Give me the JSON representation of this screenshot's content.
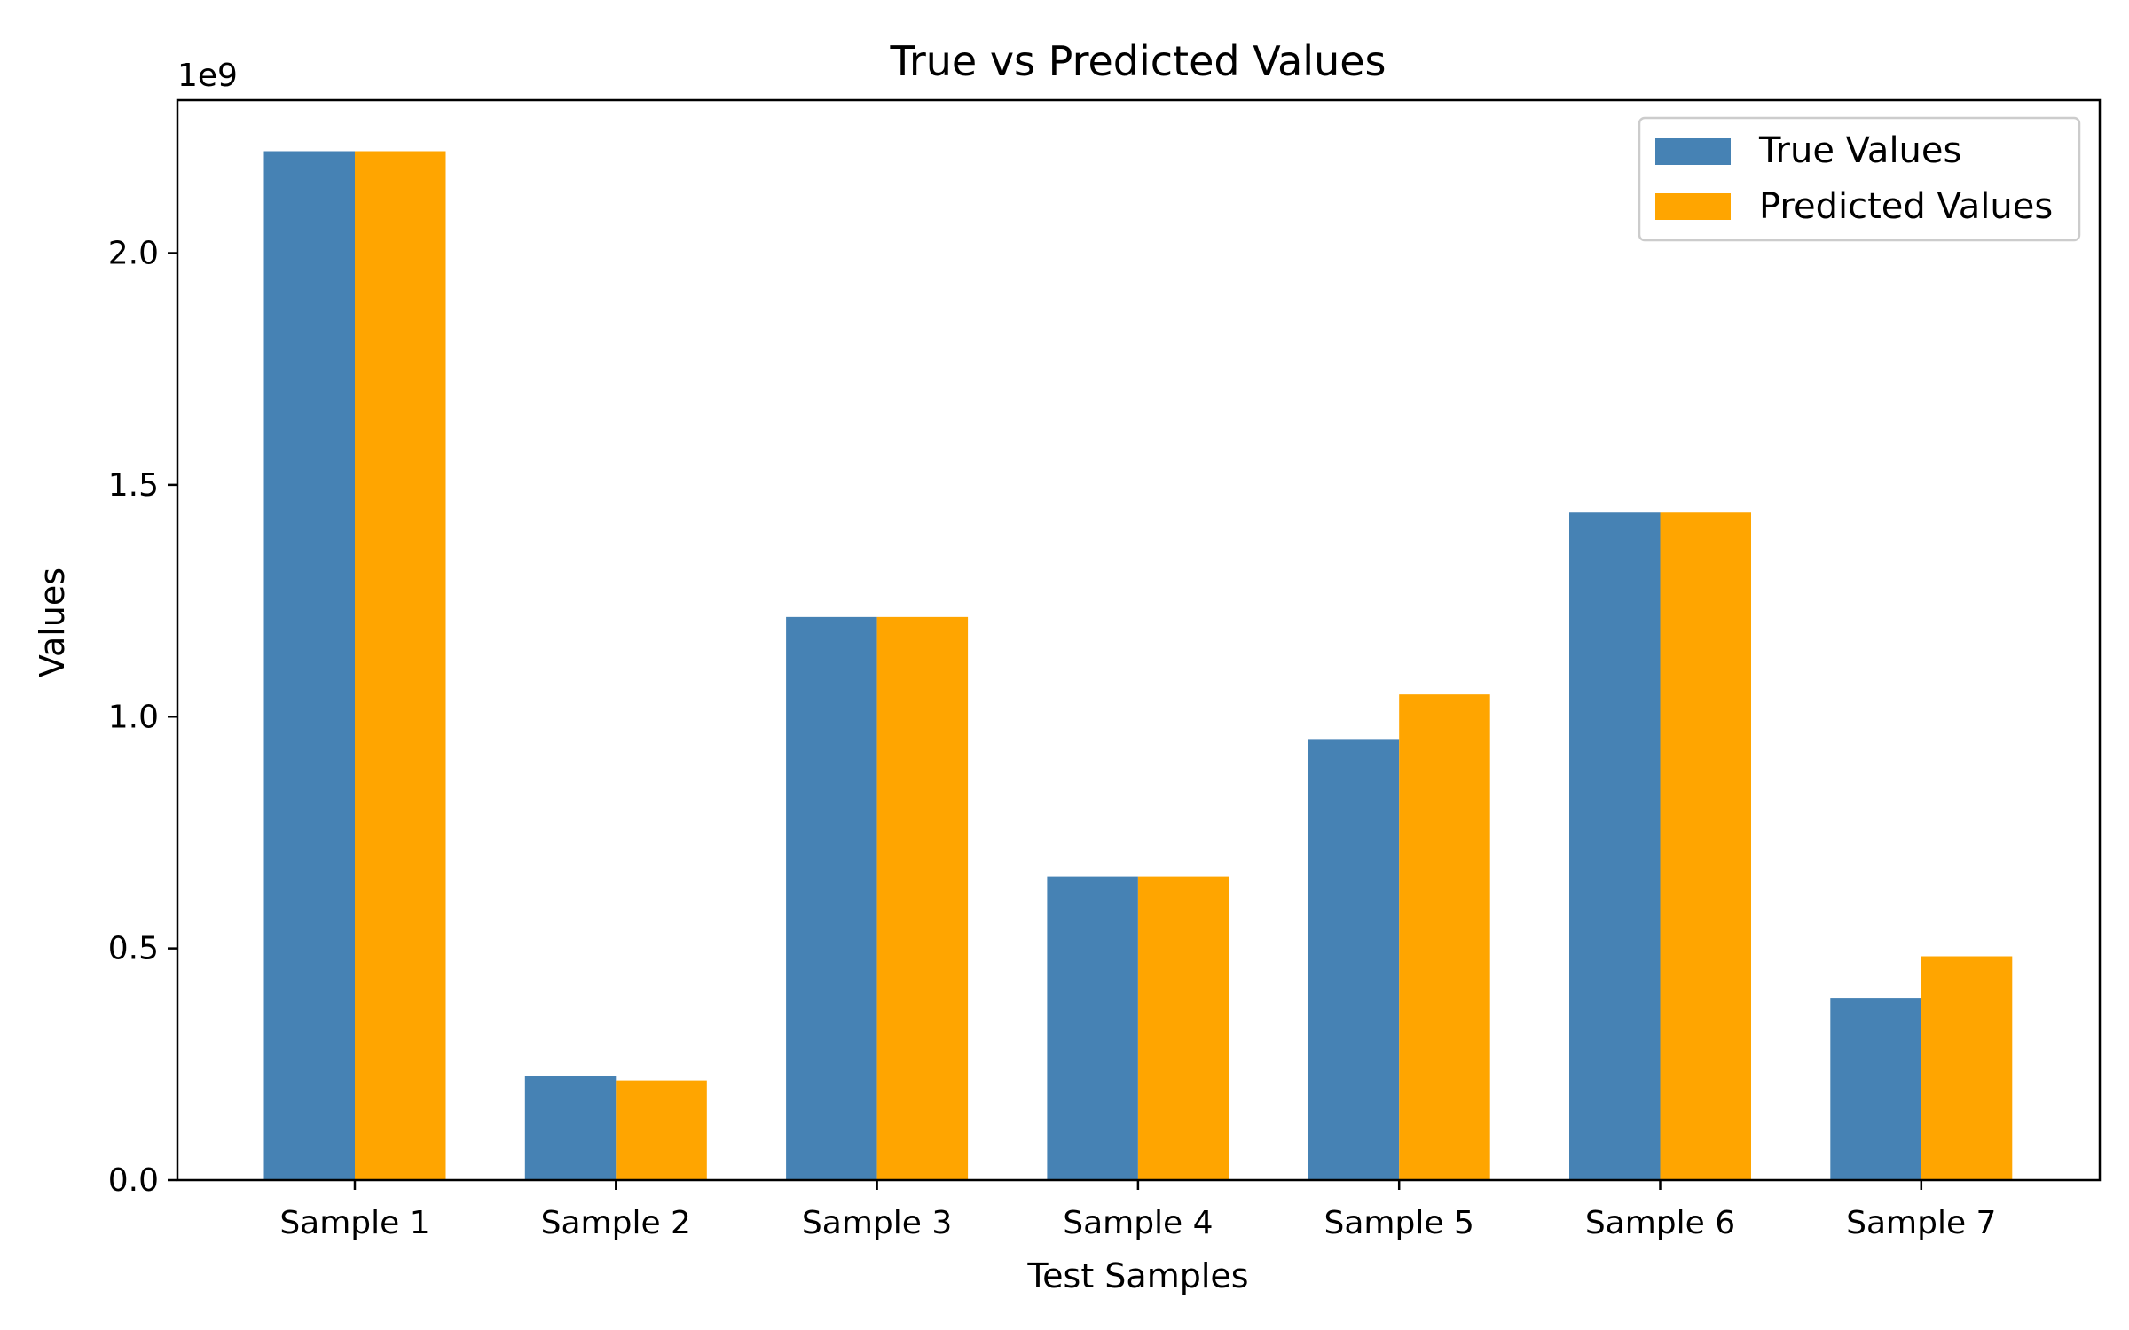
{
  "chart_data": {
    "type": "bar",
    "title": "True vs Predicted Values",
    "xlabel": "Test Samples",
    "ylabel": "Values",
    "y_offset_label": "1e9",
    "categories": [
      "Sample 1",
      "Sample 2",
      "Sample 3",
      "Sample 4",
      "Sample 5",
      "Sample 6",
      "Sample 7"
    ],
    "series": [
      {
        "name": "True Values",
        "color": "#4682B4",
        "values": [
          2220000000,
          225000000,
          1215000000,
          655000000,
          950000000,
          1440000000,
          392000000
        ]
      },
      {
        "name": "Predicted Values",
        "color": "#FFA500",
        "values": [
          2220000000,
          215000000,
          1215000000,
          655000000,
          1048000000,
          1440000000,
          483000000
        ]
      }
    ],
    "ylim": [
      0,
      2330000000
    ],
    "yticks": [
      0,
      500000000,
      1000000000,
      1500000000,
      2000000000
    ],
    "ytick_labels": [
      "0.0",
      "0.5",
      "1.0",
      "1.5",
      "2.0"
    ],
    "grid": false,
    "legend_position": "top-right"
  }
}
